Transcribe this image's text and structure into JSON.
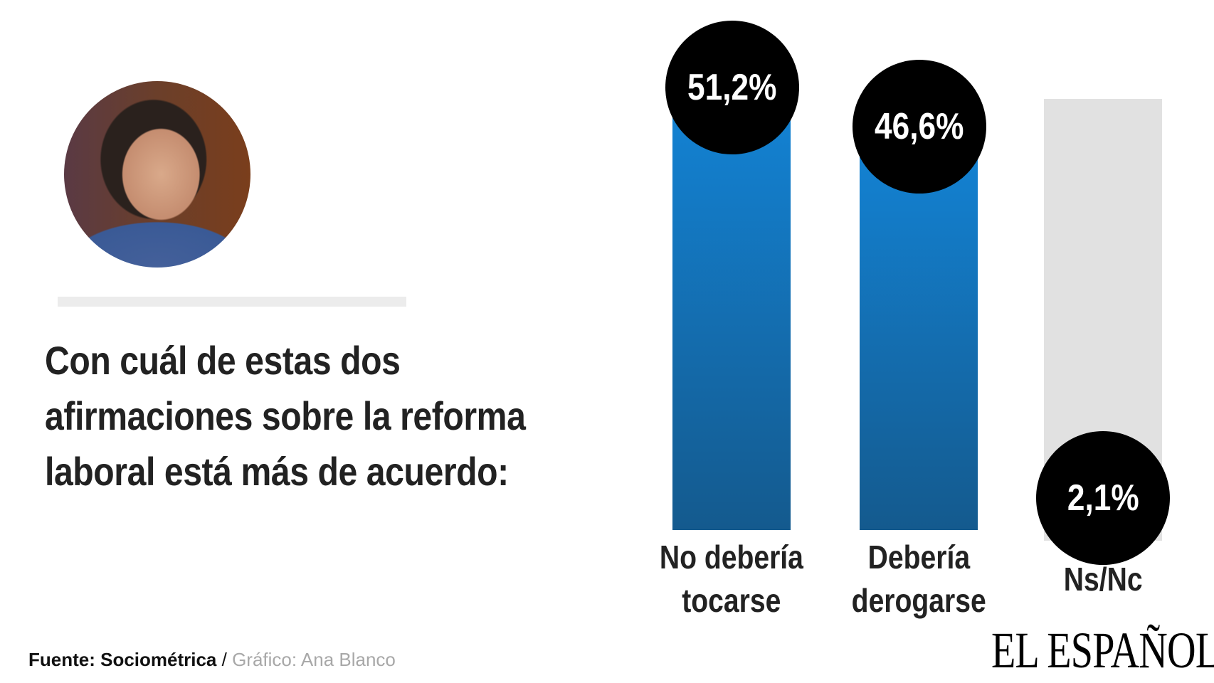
{
  "question": "Con cuál de estas dos afirmaciones sobre la reforma laboral está más de acuerdo:",
  "footer": {
    "source": "Fuente: Sociométrica",
    "separator": " / ",
    "credit": "Gráfico: Ana Blanco"
  },
  "logo": "EL ESPAÑOL",
  "chart_data": {
    "type": "bar",
    "categories": [
      "No debería tocarse",
      "Debería derogarse",
      "Ns/Nc"
    ],
    "values": [
      51.2,
      46.6,
      2.1
    ],
    "value_labels": [
      "51,2%",
      "46,6%",
      "2,1%"
    ],
    "label_lines": [
      [
        "No debería",
        "tocarse"
      ],
      [
        "Debería",
        "derogarse"
      ],
      [
        "Ns/Nc"
      ]
    ],
    "colors": [
      "#1382d3",
      "#1382d3",
      "#e1e1e1"
    ],
    "title": "",
    "xlabel": "",
    "ylabel": "",
    "grid": false
  }
}
